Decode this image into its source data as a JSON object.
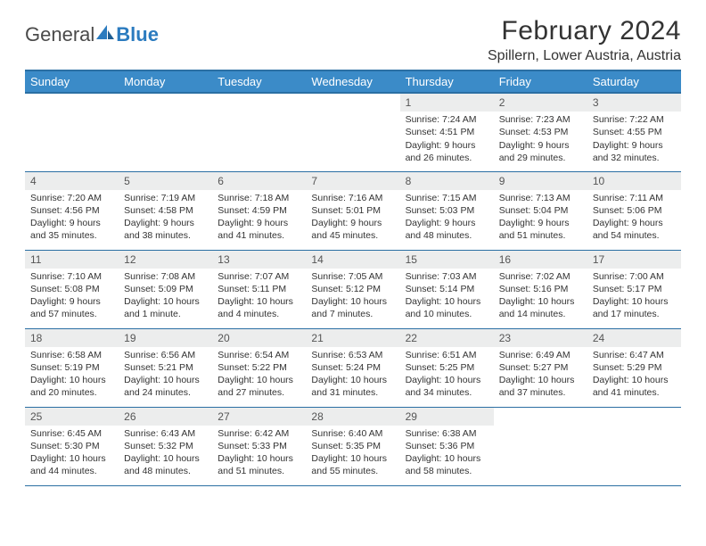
{
  "brand": {
    "part1": "General",
    "part2": "Blue"
  },
  "title": "February 2024",
  "location": "Spillern, Lower Austria, Austria",
  "colors": {
    "header_bg": "#3b8bc8",
    "header_border": "#2b6fa3",
    "daynum_bg": "#eceded",
    "text": "#333333",
    "brand_blue": "#2b7bbf"
  },
  "weekdays": [
    "Sunday",
    "Monday",
    "Tuesday",
    "Wednesday",
    "Thursday",
    "Friday",
    "Saturday"
  ],
  "weeks": [
    [
      {
        "n": "",
        "sr": "",
        "ss": "",
        "dl": ""
      },
      {
        "n": "",
        "sr": "",
        "ss": "",
        "dl": ""
      },
      {
        "n": "",
        "sr": "",
        "ss": "",
        "dl": ""
      },
      {
        "n": "",
        "sr": "",
        "ss": "",
        "dl": ""
      },
      {
        "n": "1",
        "sr": "Sunrise: 7:24 AM",
        "ss": "Sunset: 4:51 PM",
        "dl": "Daylight: 9 hours and 26 minutes."
      },
      {
        "n": "2",
        "sr": "Sunrise: 7:23 AM",
        "ss": "Sunset: 4:53 PM",
        "dl": "Daylight: 9 hours and 29 minutes."
      },
      {
        "n": "3",
        "sr": "Sunrise: 7:22 AM",
        "ss": "Sunset: 4:55 PM",
        "dl": "Daylight: 9 hours and 32 minutes."
      }
    ],
    [
      {
        "n": "4",
        "sr": "Sunrise: 7:20 AM",
        "ss": "Sunset: 4:56 PM",
        "dl": "Daylight: 9 hours and 35 minutes."
      },
      {
        "n": "5",
        "sr": "Sunrise: 7:19 AM",
        "ss": "Sunset: 4:58 PM",
        "dl": "Daylight: 9 hours and 38 minutes."
      },
      {
        "n": "6",
        "sr": "Sunrise: 7:18 AM",
        "ss": "Sunset: 4:59 PM",
        "dl": "Daylight: 9 hours and 41 minutes."
      },
      {
        "n": "7",
        "sr": "Sunrise: 7:16 AM",
        "ss": "Sunset: 5:01 PM",
        "dl": "Daylight: 9 hours and 45 minutes."
      },
      {
        "n": "8",
        "sr": "Sunrise: 7:15 AM",
        "ss": "Sunset: 5:03 PM",
        "dl": "Daylight: 9 hours and 48 minutes."
      },
      {
        "n": "9",
        "sr": "Sunrise: 7:13 AM",
        "ss": "Sunset: 5:04 PM",
        "dl": "Daylight: 9 hours and 51 minutes."
      },
      {
        "n": "10",
        "sr": "Sunrise: 7:11 AM",
        "ss": "Sunset: 5:06 PM",
        "dl": "Daylight: 9 hours and 54 minutes."
      }
    ],
    [
      {
        "n": "11",
        "sr": "Sunrise: 7:10 AM",
        "ss": "Sunset: 5:08 PM",
        "dl": "Daylight: 9 hours and 57 minutes."
      },
      {
        "n": "12",
        "sr": "Sunrise: 7:08 AM",
        "ss": "Sunset: 5:09 PM",
        "dl": "Daylight: 10 hours and 1 minute."
      },
      {
        "n": "13",
        "sr": "Sunrise: 7:07 AM",
        "ss": "Sunset: 5:11 PM",
        "dl": "Daylight: 10 hours and 4 minutes."
      },
      {
        "n": "14",
        "sr": "Sunrise: 7:05 AM",
        "ss": "Sunset: 5:12 PM",
        "dl": "Daylight: 10 hours and 7 minutes."
      },
      {
        "n": "15",
        "sr": "Sunrise: 7:03 AM",
        "ss": "Sunset: 5:14 PM",
        "dl": "Daylight: 10 hours and 10 minutes."
      },
      {
        "n": "16",
        "sr": "Sunrise: 7:02 AM",
        "ss": "Sunset: 5:16 PM",
        "dl": "Daylight: 10 hours and 14 minutes."
      },
      {
        "n": "17",
        "sr": "Sunrise: 7:00 AM",
        "ss": "Sunset: 5:17 PM",
        "dl": "Daylight: 10 hours and 17 minutes."
      }
    ],
    [
      {
        "n": "18",
        "sr": "Sunrise: 6:58 AM",
        "ss": "Sunset: 5:19 PM",
        "dl": "Daylight: 10 hours and 20 minutes."
      },
      {
        "n": "19",
        "sr": "Sunrise: 6:56 AM",
        "ss": "Sunset: 5:21 PM",
        "dl": "Daylight: 10 hours and 24 minutes."
      },
      {
        "n": "20",
        "sr": "Sunrise: 6:54 AM",
        "ss": "Sunset: 5:22 PM",
        "dl": "Daylight: 10 hours and 27 minutes."
      },
      {
        "n": "21",
        "sr": "Sunrise: 6:53 AM",
        "ss": "Sunset: 5:24 PM",
        "dl": "Daylight: 10 hours and 31 minutes."
      },
      {
        "n": "22",
        "sr": "Sunrise: 6:51 AM",
        "ss": "Sunset: 5:25 PM",
        "dl": "Daylight: 10 hours and 34 minutes."
      },
      {
        "n": "23",
        "sr": "Sunrise: 6:49 AM",
        "ss": "Sunset: 5:27 PM",
        "dl": "Daylight: 10 hours and 37 minutes."
      },
      {
        "n": "24",
        "sr": "Sunrise: 6:47 AM",
        "ss": "Sunset: 5:29 PM",
        "dl": "Daylight: 10 hours and 41 minutes."
      }
    ],
    [
      {
        "n": "25",
        "sr": "Sunrise: 6:45 AM",
        "ss": "Sunset: 5:30 PM",
        "dl": "Daylight: 10 hours and 44 minutes."
      },
      {
        "n": "26",
        "sr": "Sunrise: 6:43 AM",
        "ss": "Sunset: 5:32 PM",
        "dl": "Daylight: 10 hours and 48 minutes."
      },
      {
        "n": "27",
        "sr": "Sunrise: 6:42 AM",
        "ss": "Sunset: 5:33 PM",
        "dl": "Daylight: 10 hours and 51 minutes."
      },
      {
        "n": "28",
        "sr": "Sunrise: 6:40 AM",
        "ss": "Sunset: 5:35 PM",
        "dl": "Daylight: 10 hours and 55 minutes."
      },
      {
        "n": "29",
        "sr": "Sunrise: 6:38 AM",
        "ss": "Sunset: 5:36 PM",
        "dl": "Daylight: 10 hours and 58 minutes."
      },
      {
        "n": "",
        "sr": "",
        "ss": "",
        "dl": ""
      },
      {
        "n": "",
        "sr": "",
        "ss": "",
        "dl": ""
      }
    ]
  ]
}
